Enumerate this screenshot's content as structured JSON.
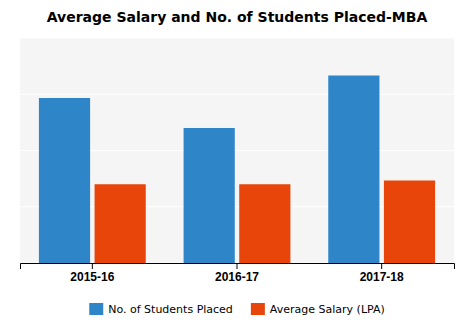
{
  "chart_data": {
    "type": "bar",
    "title": "Average Salary and No. of Students Placed-MBA",
    "categories": [
      "2015-16",
      "2016-17",
      "2017-18"
    ],
    "series": [
      {
        "name": "No. of Students Placed",
        "color": "#2E86C8",
        "values": [
          88,
          72,
          100
        ]
      },
      {
        "name": "Average Salary (LPA)",
        "color": "#E8450A",
        "values": [
          42,
          42,
          44
        ]
      }
    ],
    "ylim": [
      0,
      120
    ],
    "yticks": [
      0,
      30,
      60,
      90,
      120
    ],
    "grid": true,
    "tick_labels": "x",
    "legend": "bottom"
  }
}
